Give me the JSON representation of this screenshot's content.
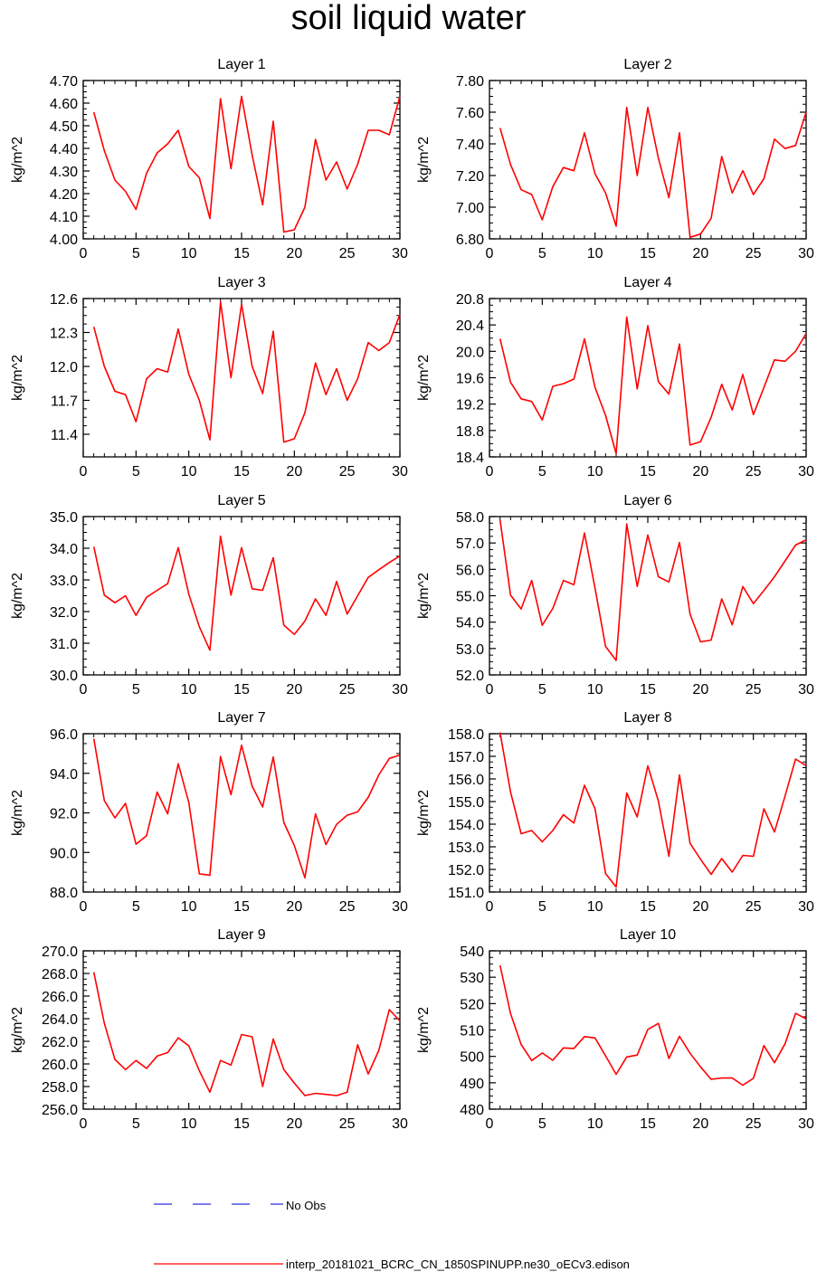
{
  "figure": {
    "title": "soil liquid water",
    "legend": [
      {
        "label": "No Obs",
        "color": "#2b2bdc",
        "style": "dashed"
      },
      {
        "label": "interp_20181021_BCRC_CN_1850SPINUPP.ne30_oECv3.edison",
        "color": "#ff0000",
        "style": "solid"
      }
    ]
  },
  "chart_data": [
    {
      "type": "line",
      "title": "Layer 1",
      "xlabel": "",
      "ylabel": "kg/m^2",
      "xlim": [
        0,
        30
      ],
      "ylim": [
        4.0,
        4.7
      ],
      "xticks": [
        "0",
        "5",
        "10",
        "15",
        "20",
        "25",
        "30"
      ],
      "yticks": [
        "4.00",
        "4.10",
        "4.20",
        "4.30",
        "4.40",
        "4.50",
        "4.60",
        "4.70"
      ],
      "x": [
        1,
        2,
        3,
        4,
        5,
        6,
        7,
        8,
        9,
        10,
        11,
        12,
        13,
        14,
        15,
        16,
        17,
        18,
        19,
        20,
        21,
        22,
        23,
        24,
        25,
        26,
        27,
        28,
        29,
        30
      ],
      "series": [
        {
          "values": [
            4.56,
            4.39,
            4.26,
            4.21,
            4.13,
            4.29,
            4.38,
            4.42,
            4.48,
            4.32,
            4.27,
            4.09,
            4.62,
            4.31,
            4.63,
            4.37,
            4.15,
            4.52,
            4.03,
            4.04,
            4.14,
            4.44,
            4.26,
            4.34,
            4.22,
            4.33,
            4.48,
            4.48,
            4.46,
            4.63
          ],
          "color": "#ff0000"
        }
      ]
    },
    {
      "type": "line",
      "title": "Layer 2",
      "xlabel": "",
      "ylabel": "kg/m^2",
      "xlim": [
        0,
        30
      ],
      "ylim": [
        6.8,
        7.8
      ],
      "xticks": [
        "0",
        "5",
        "10",
        "15",
        "20",
        "25",
        "30"
      ],
      "yticks": [
        "6.80",
        "7.00",
        "7.20",
        "7.40",
        "7.60",
        "7.80"
      ],
      "x": [
        1,
        2,
        3,
        4,
        5,
        6,
        7,
        8,
        9,
        10,
        11,
        12,
        13,
        14,
        15,
        16,
        17,
        18,
        19,
        20,
        21,
        22,
        23,
        24,
        25,
        26,
        27,
        28,
        29,
        30
      ],
      "series": [
        {
          "values": [
            7.5,
            7.27,
            7.11,
            7.08,
            6.92,
            7.13,
            7.25,
            7.23,
            7.47,
            7.21,
            7.09,
            6.88,
            7.63,
            7.2,
            7.63,
            7.31,
            7.06,
            7.47,
            6.81,
            6.83,
            6.93,
            7.32,
            7.09,
            7.23,
            7.08,
            7.18,
            7.43,
            7.37,
            7.39,
            7.6
          ],
          "color": "#ff0000"
        }
      ]
    },
    {
      "type": "line",
      "title": "Layer 3",
      "xlabel": "",
      "ylabel": "kg/m^2",
      "xlim": [
        0,
        30
      ],
      "ylim": [
        11.2,
        12.6
      ],
      "xticks": [
        "0",
        "5",
        "10",
        "15",
        "20",
        "25",
        "30"
      ],
      "yticks": [
        "11.4",
        "11.7",
        "12.0",
        "12.3",
        "12.6"
      ],
      "x": [
        1,
        2,
        3,
        4,
        5,
        6,
        7,
        8,
        9,
        10,
        11,
        12,
        13,
        14,
        15,
        16,
        17,
        18,
        19,
        20,
        21,
        22,
        23,
        24,
        25,
        26,
        27,
        28,
        29,
        30
      ],
      "series": [
        {
          "values": [
            12.35,
            12.0,
            11.78,
            11.75,
            11.51,
            11.89,
            11.98,
            11.95,
            12.33,
            11.93,
            11.7,
            11.35,
            12.57,
            11.9,
            12.55,
            12.0,
            11.76,
            12.31,
            11.33,
            11.36,
            11.59,
            12.03,
            11.75,
            11.98,
            11.7,
            11.89,
            12.21,
            12.14,
            12.21,
            12.46
          ],
          "color": "#ff0000"
        }
      ]
    },
    {
      "type": "line",
      "title": "Layer 4",
      "xlabel": "",
      "ylabel": "kg/m^2",
      "xlim": [
        0,
        30
      ],
      "ylim": [
        18.4,
        20.8
      ],
      "xticks": [
        "0",
        "5",
        "10",
        "15",
        "20",
        "25",
        "30"
      ],
      "yticks": [
        "18.4",
        "18.8",
        "19.2",
        "19.6",
        "20.0",
        "20.4",
        "20.8"
      ],
      "x": [
        1,
        2,
        3,
        4,
        5,
        6,
        7,
        8,
        9,
        10,
        11,
        12,
        13,
        14,
        15,
        16,
        17,
        18,
        19,
        20,
        21,
        22,
        23,
        24,
        25,
        26,
        27,
        28,
        29,
        30
      ],
      "series": [
        {
          "values": [
            20.19,
            19.53,
            19.28,
            19.24,
            18.96,
            19.47,
            19.51,
            19.58,
            20.19,
            19.45,
            19.03,
            18.45,
            20.52,
            19.43,
            20.39,
            19.54,
            19.35,
            20.11,
            18.58,
            18.63,
            19.0,
            19.5,
            19.11,
            19.65,
            19.04,
            19.45,
            19.87,
            19.85,
            20.0,
            20.27
          ],
          "color": "#ff0000"
        }
      ]
    },
    {
      "type": "line",
      "title": "Layer 5",
      "xlabel": "",
      "ylabel": "kg/m^2",
      "xlim": [
        0,
        30
      ],
      "ylim": [
        30.0,
        35.0
      ],
      "xticks": [
        "0",
        "5",
        "10",
        "15",
        "20",
        "25",
        "30"
      ],
      "yticks": [
        "30.0",
        "31.0",
        "32.0",
        "33.0",
        "34.0",
        "35.0"
      ],
      "x": [
        1,
        2,
        3,
        4,
        5,
        6,
        7,
        8,
        9,
        10,
        11,
        12,
        13,
        14,
        15,
        16,
        17,
        18,
        19,
        20,
        21,
        22,
        23,
        24,
        25,
        26,
        27,
        28,
        29,
        30
      ],
      "series": [
        {
          "values": [
            34.05,
            32.52,
            32.28,
            32.5,
            31.88,
            32.45,
            32.67,
            32.88,
            34.02,
            32.55,
            31.52,
            30.78,
            34.38,
            32.52,
            34.02,
            32.72,
            32.67,
            33.7,
            31.57,
            31.28,
            31.7,
            32.4,
            31.88,
            32.95,
            31.92,
            32.5,
            33.08,
            33.32,
            33.55,
            33.76
          ],
          "color": "#ff0000"
        }
      ]
    },
    {
      "type": "line",
      "title": "Layer 6",
      "xlabel": "",
      "ylabel": "kg/m^2",
      "xlim": [
        0,
        30
      ],
      "ylim": [
        52.0,
        58.0
      ],
      "xticks": [
        "0",
        "5",
        "10",
        "15",
        "20",
        "25",
        "30"
      ],
      "yticks": [
        "52.0",
        "53.0",
        "54.0",
        "55.0",
        "56.0",
        "57.0",
        "58.0"
      ],
      "x": [
        1,
        2,
        3,
        4,
        5,
        6,
        7,
        8,
        9,
        10,
        11,
        12,
        13,
        14,
        15,
        16,
        17,
        18,
        19,
        20,
        21,
        22,
        23,
        24,
        25,
        26,
        27,
        28,
        29,
        30
      ],
      "series": [
        {
          "values": [
            57.88,
            55.02,
            54.5,
            55.58,
            53.88,
            54.52,
            55.58,
            55.42,
            57.38,
            55.28,
            53.08,
            52.55,
            57.72,
            55.35,
            57.3,
            55.72,
            55.52,
            57.02,
            54.3,
            53.25,
            53.32,
            54.88,
            53.9,
            55.35,
            54.7,
            55.2,
            55.72,
            56.32,
            56.92,
            57.12
          ],
          "color": "#ff0000"
        }
      ]
    },
    {
      "type": "line",
      "title": "Layer 7",
      "xlabel": "",
      "ylabel": "kg/m^2",
      "xlim": [
        0,
        30
      ],
      "ylim": [
        88.0,
        96.0
      ],
      "xticks": [
        "0",
        "5",
        "10",
        "15",
        "20",
        "25",
        "30"
      ],
      "yticks": [
        "88.0",
        "90.0",
        "92.0",
        "94.0",
        "96.0"
      ],
      "x": [
        1,
        2,
        3,
        4,
        5,
        6,
        7,
        8,
        9,
        10,
        11,
        12,
        13,
        14,
        15,
        16,
        17,
        18,
        19,
        20,
        21,
        22,
        23,
        24,
        25,
        26,
        27,
        28,
        29,
        30
      ],
      "series": [
        {
          "values": [
            95.75,
            92.62,
            91.75,
            92.48,
            90.42,
            90.85,
            93.05,
            91.95,
            94.48,
            92.52,
            88.92,
            88.85,
            94.85,
            92.92,
            95.42,
            93.35,
            92.3,
            94.82,
            91.52,
            90.35,
            88.72,
            91.95,
            90.4,
            91.42,
            91.88,
            92.05,
            92.78,
            93.92,
            94.75,
            94.92
          ],
          "color": "#ff0000"
        }
      ]
    },
    {
      "type": "line",
      "title": "Layer 8",
      "xlabel": "",
      "ylabel": "kg/m^2",
      "xlim": [
        0,
        30
      ],
      "ylim": [
        151.0,
        158.0
      ],
      "xticks": [
        "0",
        "5",
        "10",
        "15",
        "20",
        "25",
        "30"
      ],
      "yticks": [
        "151.0",
        "152.0",
        "153.0",
        "154.0",
        "155.0",
        "156.0",
        "157.0",
        "158.0"
      ],
      "x": [
        1,
        2,
        3,
        4,
        5,
        6,
        7,
        8,
        9,
        10,
        11,
        12,
        13,
        14,
        15,
        16,
        17,
        18,
        19,
        20,
        21,
        22,
        23,
        24,
        25,
        26,
        27,
        28,
        29,
        30
      ],
      "series": [
        {
          "values": [
            158.05,
            155.42,
            153.58,
            153.72,
            153.22,
            153.72,
            154.42,
            154.05,
            155.72,
            154.68,
            151.82,
            151.22,
            155.38,
            154.32,
            156.58,
            155.02,
            152.58,
            156.18,
            153.15,
            152.45,
            151.78,
            152.48,
            151.88,
            152.62,
            152.58,
            154.68,
            153.65,
            155.25,
            156.88,
            156.58
          ],
          "color": "#ff0000"
        }
      ]
    },
    {
      "type": "line",
      "title": "Layer 9",
      "xlabel": "",
      "ylabel": "kg/m^2",
      "xlim": [
        0,
        30
      ],
      "ylim": [
        256.0,
        270.0
      ],
      "xticks": [
        "0",
        "5",
        "10",
        "15",
        "20",
        "25",
        "30"
      ],
      "yticks": [
        "256.0",
        "258.0",
        "260.0",
        "262.0",
        "264.0",
        "266.0",
        "268.0",
        "270.0"
      ],
      "x": [
        1,
        2,
        3,
        4,
        5,
        6,
        7,
        8,
        9,
        10,
        11,
        12,
        13,
        14,
        15,
        16,
        17,
        18,
        19,
        20,
        21,
        22,
        23,
        24,
        25,
        26,
        27,
        28,
        29,
        30
      ],
      "series": [
        {
          "values": [
            268.1,
            263.6,
            260.4,
            259.5,
            260.3,
            259.6,
            260.7,
            261.0,
            262.3,
            261.6,
            259.4,
            257.5,
            260.3,
            259.9,
            262.6,
            262.4,
            258.0,
            262.2,
            259.5,
            258.3,
            257.2,
            257.4,
            257.3,
            257.2,
            257.5,
            261.7,
            259.1,
            261.2,
            264.8,
            263.8
          ],
          "color": "#ff0000"
        }
      ]
    },
    {
      "type": "line",
      "title": "Layer 10",
      "xlabel": "",
      "ylabel": "kg/m^2",
      "xlim": [
        0,
        30
      ],
      "ylim": [
        480,
        540
      ],
      "xticks": [
        "0",
        "5",
        "10",
        "15",
        "20",
        "25",
        "30"
      ],
      "yticks": [
        "480",
        "490",
        "500",
        "510",
        "520",
        "530",
        "540"
      ],
      "x": [
        1,
        2,
        3,
        4,
        5,
        6,
        7,
        8,
        9,
        10,
        11,
        12,
        13,
        14,
        15,
        16,
        17,
        18,
        19,
        20,
        21,
        22,
        23,
        24,
        25,
        26,
        27,
        28,
        29,
        30
      ],
      "series": [
        {
          "values": [
            534.5,
            516.2,
            504.5,
            498.4,
            501.3,
            498.5,
            503.2,
            503.0,
            507.5,
            507.0,
            500.2,
            493.2,
            499.8,
            500.5,
            510.2,
            512.5,
            499.2,
            507.6,
            501.2,
            496.0,
            491.3,
            491.8,
            491.8,
            489.1,
            491.7,
            504.1,
            497.6,
            504.8,
            516.3,
            514.2
          ],
          "color": "#ff0000"
        }
      ]
    }
  ]
}
